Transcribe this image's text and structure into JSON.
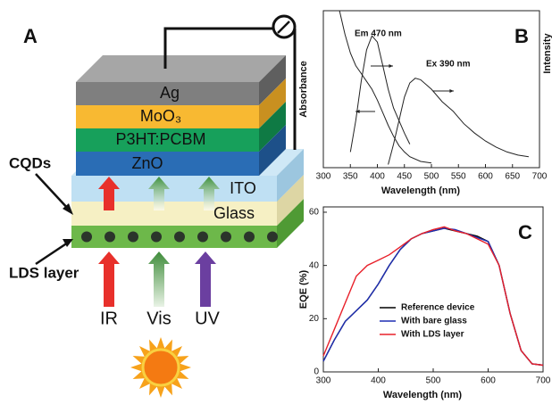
{
  "diagram": {
    "panel_label": "A",
    "layers": [
      "Ag",
      "MoO₃",
      "P3HT:PCBM",
      "ZnO",
      "ITO",
      "Glass"
    ],
    "callouts": [
      "CQDs",
      "LDS layer"
    ],
    "light": [
      "IR",
      "Vis",
      "UV"
    ]
  },
  "chart_data": [
    {
      "type": "line",
      "panel_label": "B",
      "xlabel": "Wavelength (nm)",
      "ylabel": "Absorbance",
      "ylabel_right": "Intensity",
      "xlim": [
        300,
        700
      ],
      "xticks": [
        300,
        350,
        400,
        450,
        500,
        550,
        600,
        650,
        700
      ],
      "ylim": [
        0,
        1
      ],
      "annotations": [
        "Em 470 nm",
        "Ex 390 nm"
      ],
      "series": [
        {
          "color": "#222222",
          "x": [
            330,
            340,
            350,
            360,
            370,
            380,
            390,
            400,
            410,
            420,
            430,
            440,
            450,
            460,
            480,
            500
          ],
          "values": [
            1.0,
            0.85,
            0.73,
            0.65,
            0.6,
            0.55,
            0.5,
            0.43,
            0.35,
            0.27,
            0.2,
            0.14,
            0.1,
            0.07,
            0.04,
            0.03
          ]
        },
        {
          "color": "#222222",
          "x": [
            350,
            360,
            370,
            380,
            390,
            400,
            410,
            420,
            430,
            440,
            450,
            460
          ],
          "values": [
            0.1,
            0.3,
            0.55,
            0.75,
            0.84,
            0.8,
            0.65,
            0.5,
            0.38,
            0.3,
            0.22,
            0.15
          ]
        },
        {
          "color": "#222222",
          "x": [
            420,
            430,
            440,
            450,
            460,
            470,
            480,
            500,
            520,
            540,
            560,
            580,
            600,
            620,
            640,
            660,
            680
          ],
          "values": [
            0.02,
            0.15,
            0.3,
            0.45,
            0.54,
            0.57,
            0.56,
            0.5,
            0.42,
            0.36,
            0.28,
            0.22,
            0.17,
            0.13,
            0.1,
            0.08,
            0.07
          ]
        }
      ]
    },
    {
      "type": "line",
      "panel_label": "C",
      "xlabel": "Wavelength (nm)",
      "ylabel": "EQE (%)",
      "xlim": [
        300,
        700
      ],
      "xticks": [
        300,
        400,
        500,
        600,
        700
      ],
      "ylim": [
        0,
        62
      ],
      "yticks": [
        0,
        20,
        40,
        60
      ],
      "legend": "lower center",
      "x": [
        300,
        320,
        340,
        360,
        380,
        400,
        420,
        440,
        460,
        480,
        500,
        520,
        540,
        560,
        580,
        600,
        620,
        640,
        660,
        680,
        700
      ],
      "series": [
        {
          "name": "Reference device",
          "color": "#000000",
          "values": [
            4,
            12,
            19,
            23,
            27,
            33,
            40,
            46,
            50,
            52,
            53,
            54,
            53,
            52,
            51,
            49,
            40,
            22,
            8,
            3,
            2.5
          ]
        },
        {
          "name": "With bare glass",
          "color": "#1f2fb4",
          "values": [
            4,
            12,
            19,
            23,
            27,
            33,
            40,
            46,
            50,
            52,
            53,
            54,
            53.5,
            52,
            50.5,
            49,
            40,
            22,
            8,
            3,
            2.5
          ]
        },
        {
          "name": "With LDS layer",
          "color": "#e8202a",
          "values": [
            6,
            16,
            26,
            36,
            40,
            42,
            44,
            47,
            50,
            52,
            53.5,
            54.5,
            53,
            52,
            50,
            48,
            40,
            22,
            8,
            3,
            2.5
          ]
        }
      ]
    }
  ]
}
